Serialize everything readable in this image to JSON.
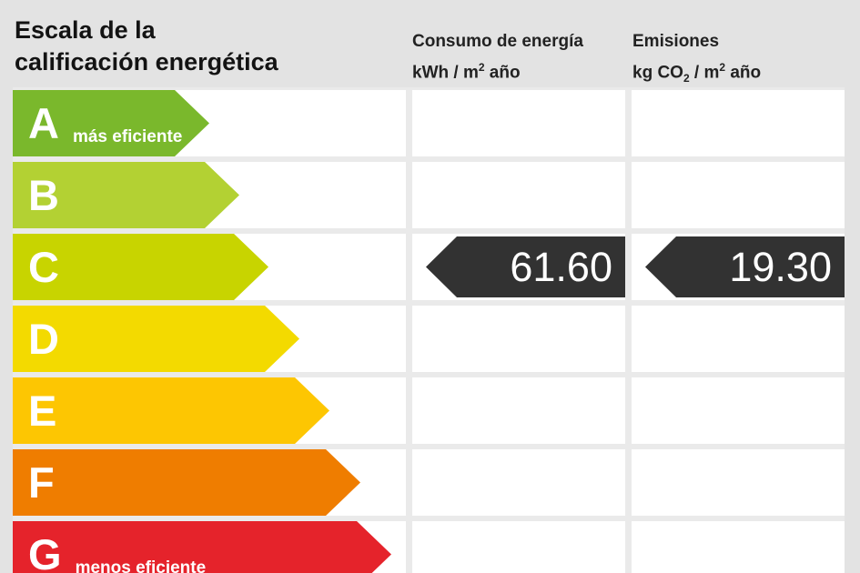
{
  "title": {
    "line1": "Escala de la",
    "line2": "calificación energética"
  },
  "columns": {
    "consumo": {
      "title": "Consumo de energía",
      "unit_prefix": "kWh / m",
      "unit_sup": "2",
      "unit_suffix": " año"
    },
    "emisiones": {
      "title": "Emisiones",
      "unit_prefix": "kg CO",
      "unit_sub": "2",
      "unit_mid": " / m",
      "unit_sup": "2",
      "unit_suffix": " año"
    }
  },
  "scale": {
    "rows": [
      {
        "letter": "A",
        "note": "más eficiente",
        "color": "#7ab82c"
      },
      {
        "letter": "B",
        "note": "",
        "color": "#b3d133"
      },
      {
        "letter": "C",
        "note": "",
        "color": "#c8d400"
      },
      {
        "letter": "D",
        "note": "",
        "color": "#f3da00"
      },
      {
        "letter": "E",
        "note": "",
        "color": "#fdc602"
      },
      {
        "letter": "F",
        "note": "",
        "color": "#ef7d00"
      },
      {
        "letter": "G",
        "note": "menos eficiente",
        "color": "#e5232b"
      }
    ]
  },
  "rating": {
    "letter": "C",
    "consumo_value": "61.60",
    "emisiones_value": "19.30",
    "indicator_color": "#323232"
  },
  "chart_data": {
    "type": "bar",
    "title": "Escala de la calificación energética",
    "categories": [
      "A",
      "B",
      "C",
      "D",
      "E",
      "F",
      "G"
    ],
    "category_notes": {
      "A": "más eficiente",
      "G": "menos eficiente"
    },
    "band_colors": [
      "#7ab82c",
      "#b3d133",
      "#c8d400",
      "#f3da00",
      "#fdc602",
      "#ef7d00",
      "#e5232b"
    ],
    "series": [
      {
        "name": "Consumo de energía kWh/m2 año",
        "rating": "C",
        "value": 61.6
      },
      {
        "name": "Emisiones kg CO2/m2 año",
        "rating": "C",
        "value": 19.3
      }
    ],
    "legend_position": "top",
    "grid": false
  }
}
